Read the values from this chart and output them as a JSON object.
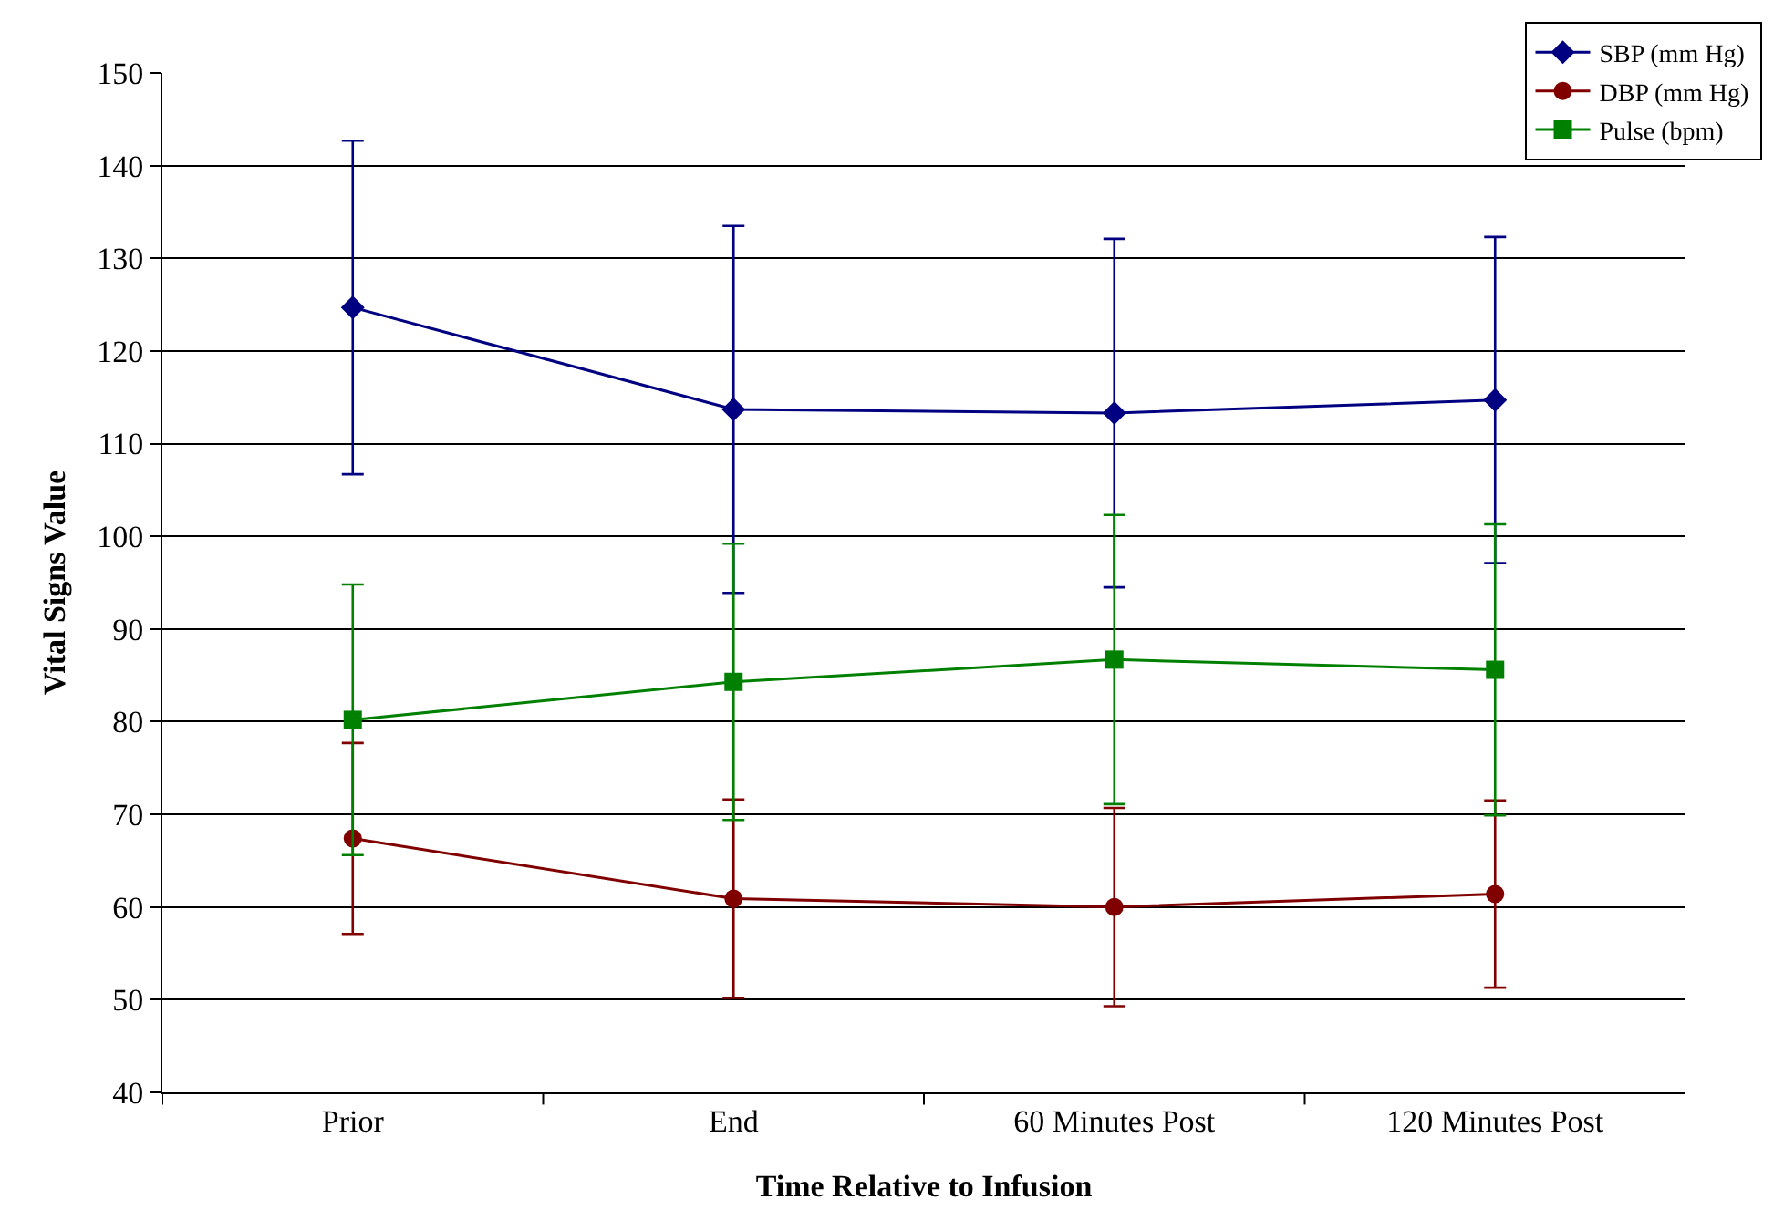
{
  "chart_data": {
    "type": "line",
    "xlabel": "Time Relative to Infusion",
    "ylabel": "Vital Signs Value",
    "categories": [
      "Prior",
      "End",
      "60 Minutes Post",
      "120 Minutes Post"
    ],
    "series": [
      {
        "name": "SBP (mm Hg)",
        "color": "#000080",
        "marker": "diamond",
        "values": [
          124.7,
          113.7,
          113.3,
          114.7
        ],
        "errors": [
          18,
          19.8,
          18.8,
          17.6
        ]
      },
      {
        "name": "DBP (mm Hg)",
        "color": "#800000",
        "marker": "circle",
        "values": [
          67.4,
          60.9,
          60.0,
          61.4
        ],
        "errors": [
          10.3,
          10.7,
          10.7,
          10.1
        ]
      },
      {
        "name": "Pulse (bpm)",
        "color": "#008000",
        "marker": "square",
        "values": [
          80.2,
          84.3,
          86.7,
          85.6
        ],
        "errors": [
          14.6,
          14.9,
          15.6,
          15.7
        ]
      }
    ],
    "ylim": [
      40,
      150
    ],
    "yticks": [
      40,
      50,
      60,
      70,
      80,
      90,
      100,
      110,
      120,
      130,
      140,
      150
    ],
    "grid": "y",
    "legend": "top right",
    "line_style": "solid"
  }
}
